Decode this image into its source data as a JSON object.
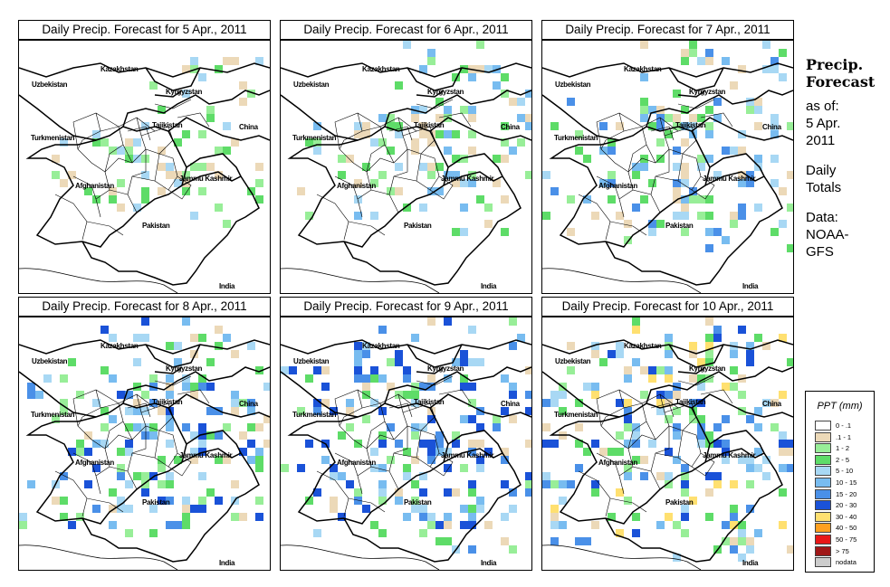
{
  "panels": [
    {
      "title": "Daily Precip. Forecast for  5 Apr., 2011",
      "intensity": 1
    },
    {
      "title": "Daily Precip. Forecast for  6 Apr., 2011",
      "intensity": 2
    },
    {
      "title": "Daily Precip. Forecast for  7 Apr., 2011",
      "intensity": 3
    },
    {
      "title": "Daily Precip. Forecast for  8 Apr., 2011",
      "intensity": 4
    },
    {
      "title": "Daily Precip. Forecast for  9 Apr., 2011",
      "intensity": 5
    },
    {
      "title": "Daily Precip. Forecast for  10 Apr., 2011",
      "intensity": 6
    }
  ],
  "map_labels": {
    "uzbekistan": "Uzbekistan",
    "kazakhstan": "Kazakhstan",
    "kyrgyzstan": "Kyrgyzstan",
    "tajikistan": "Tajikistan",
    "china": "China",
    "turkmenistan": "Turkmenistan",
    "afghanistan": "Afghanistan",
    "jammu_kashmir": "Jammu Kashmir",
    "pakistan": "Pakistan",
    "india": "India"
  },
  "sidebar": {
    "title_line1": "Precip.",
    "title_line2": "Forecast",
    "asof_line1": "as of:",
    "asof_line2": "5 Apr.",
    "asof_line3": "2011",
    "daily_line1": "Daily",
    "daily_line2": "Totals",
    "data_line1": "Data:",
    "data_line2": "NOAA-",
    "data_line3": "GFS"
  },
  "legend": {
    "title": "PPT (mm)",
    "items": [
      {
        "label": "0 - .1",
        "color": "#ffffff"
      },
      {
        "label": ".1 - 1",
        "color": "#ecd9b8"
      },
      {
        "label": "1 - 2",
        "color": "#98ee98"
      },
      {
        "label": "2 - 5",
        "color": "#5edc68"
      },
      {
        "label": "5 - 10",
        "color": "#a8d8f4"
      },
      {
        "label": "10 - 15",
        "color": "#78bcf0"
      },
      {
        "label": "15 - 20",
        "color": "#4a90e8"
      },
      {
        "label": "20 - 30",
        "color": "#1a52d8"
      },
      {
        "label": "30 - 40",
        "color": "#ffe070"
      },
      {
        "label": "40 - 50",
        "color": "#ffa020"
      },
      {
        "label": "50 - 75",
        "color": "#e81818"
      },
      {
        "label": "> 75",
        "color": "#a01818"
      },
      {
        "label": "nodata",
        "color": "#cccccc"
      }
    ]
  }
}
